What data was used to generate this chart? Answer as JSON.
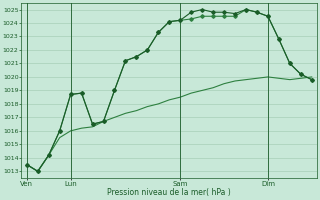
{
  "title": "",
  "xlabel": "Pression niveau de la mer( hPa )",
  "ylabel": "",
  "bg_color": "#c8e8d8",
  "grid_color": "#a0c8b0",
  "line_color_dark": "#1a5c28",
  "line_color_light": "#2e8040",
  "ylim": [
    1012.5,
    1025.5
  ],
  "yticks": [
    1013,
    1014,
    1015,
    1016,
    1017,
    1018,
    1019,
    1020,
    1021,
    1022,
    1023,
    1024,
    1025
  ],
  "day_labels": [
    "Ven",
    "Lun",
    "Sam",
    "Dim"
  ],
  "day_positions": [
    0,
    4,
    14,
    22
  ],
  "n_points": 27,
  "series1": [
    1013.5,
    1013.0,
    1014.2,
    1016.0,
    1018.7,
    1018.8,
    1016.5,
    1016.7,
    1019.0,
    1021.2,
    1021.5,
    1022.0,
    1023.3,
    1024.1,
    1024.2,
    1024.8,
    1025.0,
    1024.8,
    1024.8,
    1024.7,
    1025.0,
    1024.8,
    1024.5,
    1022.8,
    1021.0,
    1020.2,
    1019.8
  ],
  "series2": [
    1013.5,
    1013.0,
    1014.2,
    1016.0,
    1018.7,
    1018.8,
    1016.5,
    1016.7,
    1019.0,
    1021.2,
    1021.5,
    1022.0,
    1023.3,
    1024.1,
    1024.2,
    1024.3,
    1024.5,
    1024.5,
    1024.5,
    1024.5,
    1025.0,
    1024.8,
    1024.5,
    1022.8,
    1021.0,
    1020.2,
    1019.8
  ],
  "series3": [
    1013.5,
    1013.0,
    1014.2,
    1015.5,
    1016.0,
    1016.2,
    1016.3,
    1016.7,
    1017.0,
    1017.3,
    1017.5,
    1017.8,
    1018.0,
    1018.3,
    1018.5,
    1018.8,
    1019.0,
    1019.2,
    1019.5,
    1019.7,
    1019.8,
    1019.9,
    1020.0,
    1019.9,
    1019.8,
    1019.9,
    1020.0
  ]
}
